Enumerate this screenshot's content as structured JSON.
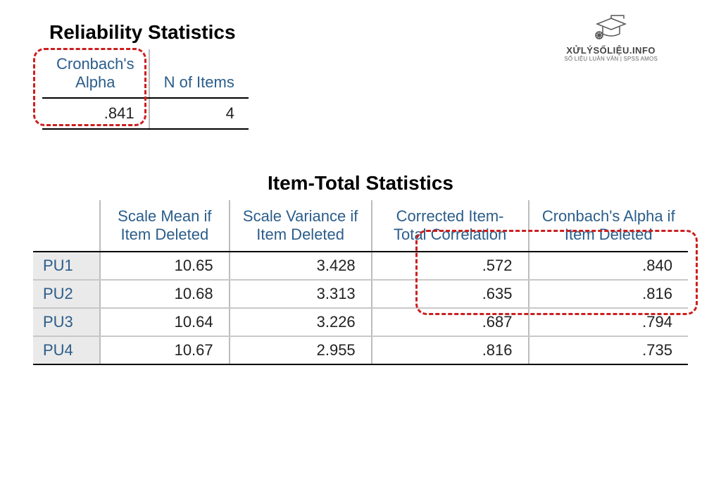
{
  "logo": {
    "main": "XỬLÝSỐLIỆU.INFO",
    "sub": "SỐ LIỆU LUẬN VĂN | SPSS AMOS"
  },
  "reliability": {
    "title": "Reliability Statistics",
    "headers": [
      "Cronbach's\nAlpha",
      "N of Items"
    ],
    "header_color": "#2b5d8a",
    "border_color": "#000000",
    "sep_color": "#bcbcbc",
    "font_size": 22,
    "row": {
      "alpha": ".841",
      "n": "4"
    },
    "highlight": {
      "color": "#cc1f1f",
      "dash": "3px",
      "radius": 16
    }
  },
  "item_total": {
    "title": "Item-Total Statistics",
    "columns": [
      "Scale Mean if Item Deleted",
      "Scale Variance if Item Deleted",
      "Corrected Item-Total Correlation",
      "Cronbach's Alpha if Item Deleted"
    ],
    "header_color": "#2b5d8a",
    "rowlabel_bg": "#eaeaea",
    "row_border": "#c8c8c8",
    "rows": [
      {
        "label": "PU1",
        "mean": "10.65",
        "var": "3.428",
        "corr": ".572",
        "alpha": ".840"
      },
      {
        "label": "PU2",
        "mean": "10.68",
        "var": "3.313",
        "corr": ".635",
        "alpha": ".816"
      },
      {
        "label": "PU3",
        "mean": "10.64",
        "var": "3.226",
        "corr": ".687",
        "alpha": ".794"
      },
      {
        "label": "PU4",
        "mean": "10.67",
        "var": "2.955",
        "corr": ".816",
        "alpha": ".735"
      }
    ],
    "highlight_cols": [
      2,
      3
    ]
  }
}
